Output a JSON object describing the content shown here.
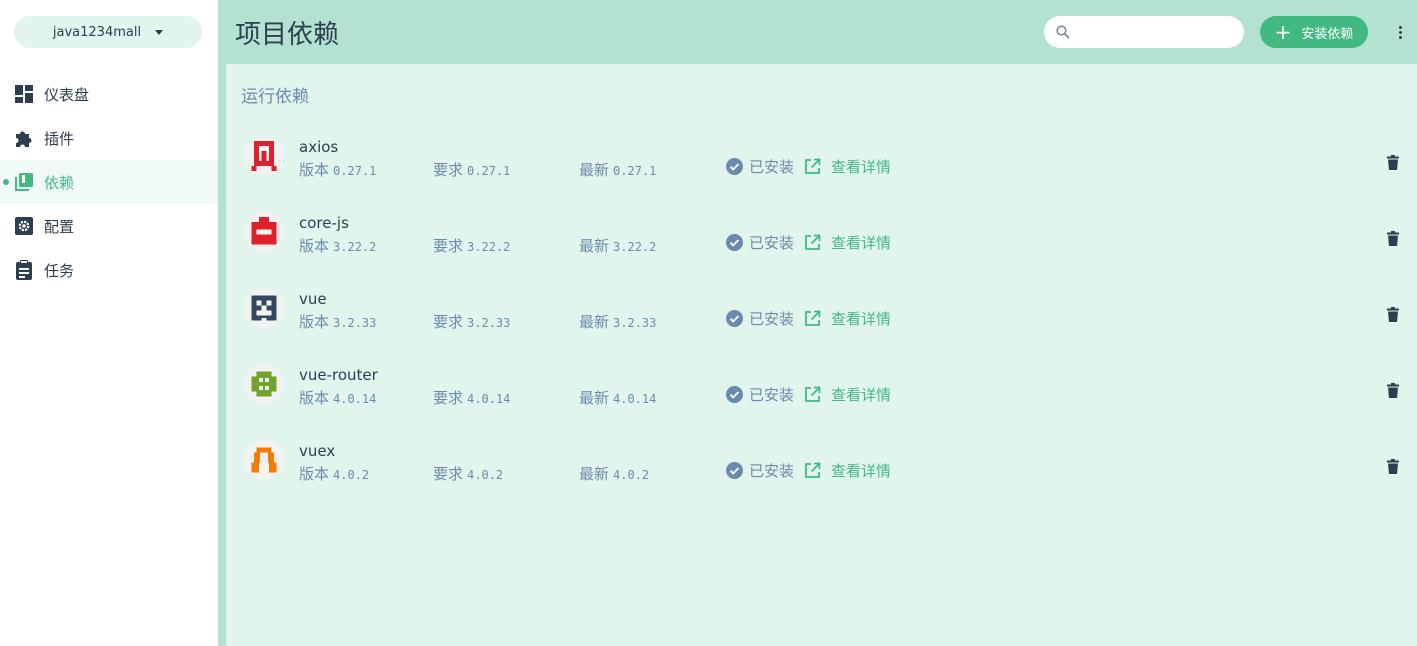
{
  "sidebar": {
    "project_name": "java1234mall",
    "items": [
      {
        "label": "仪表盘",
        "icon": "dashboard-icon"
      },
      {
        "label": "插件",
        "icon": "puzzle-icon"
      },
      {
        "label": "依赖",
        "icon": "library-icon",
        "active": true
      },
      {
        "label": "配置",
        "icon": "gear-icon"
      },
      {
        "label": "任务",
        "icon": "clipboard-icon"
      }
    ]
  },
  "header": {
    "title": "项目依赖",
    "search_placeholder": "",
    "install_label": "安装依赖"
  },
  "section": {
    "title": "运行依赖"
  },
  "labels": {
    "version": "版本",
    "wanted": "要求",
    "latest": "最新",
    "installed": "已安装",
    "details": "查看详情"
  },
  "dependencies": [
    {
      "name": "axios",
      "version": "0.27.1",
      "wanted": "0.27.1",
      "latest": "0.27.1",
      "color": "#e0202a"
    },
    {
      "name": "core-js",
      "version": "3.22.2",
      "wanted": "3.22.2",
      "latest": "3.22.2",
      "color": "#e0202a"
    },
    {
      "name": "vue",
      "version": "3.2.33",
      "wanted": "3.2.33",
      "latest": "3.2.33",
      "color": "#35495e"
    },
    {
      "name": "vue-router",
      "version": "4.0.14",
      "wanted": "4.0.14",
      "latest": "4.0.14",
      "color": "#6fa42d"
    },
    {
      "name": "vuex",
      "version": "4.0.2",
      "wanted": "4.0.2",
      "latest": "4.0.2",
      "color": "#f57c00"
    }
  ],
  "colors": {
    "accent": "#42b983",
    "header_bg": "#b4e2d0",
    "content_bg": "#e1f5ed",
    "muted_text": "#6a8bad",
    "dark_text": "#2c3e50"
  }
}
